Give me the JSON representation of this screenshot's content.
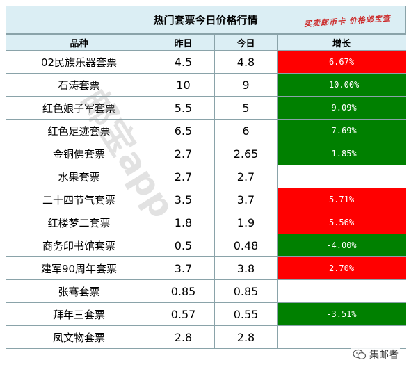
{
  "title": "热门套票今日价格行情",
  "slogan": "买卖邮币卡  价格邮宝查",
  "watermark": "邮宝app",
  "brand": "集邮者",
  "colors": {
    "up": "#ff0000",
    "down": "#008000",
    "header_bg": "#dbeef4"
  },
  "headers": [
    "品种",
    "昨日",
    "今日",
    "增长"
  ],
  "rows": [
    {
      "name": "02民族乐器套票",
      "yesterday": "4.5",
      "today": "4.8",
      "change": "6.67%",
      "trend": "up"
    },
    {
      "name": "石涛套票",
      "yesterday": "10",
      "today": "9",
      "change": "-10.00%",
      "trend": "down"
    },
    {
      "name": "红色娘子军套票",
      "yesterday": "5.5",
      "today": "5",
      "change": "-9.09%",
      "trend": "down"
    },
    {
      "name": "红色足迹套票",
      "yesterday": "6.5",
      "today": "6",
      "change": "-7.69%",
      "trend": "down"
    },
    {
      "name": "金铜佛套票",
      "yesterday": "2.7",
      "today": "2.65",
      "change": "-1.85%",
      "trend": "down"
    },
    {
      "name": "水果套票",
      "yesterday": "2.7",
      "today": "2.7",
      "change": "",
      "trend": "flat"
    },
    {
      "name": "二十四节气套票",
      "yesterday": "3.5",
      "today": "3.7",
      "change": "5.71%",
      "trend": "up"
    },
    {
      "name": "红楼梦二套票",
      "yesterday": "1.8",
      "today": "1.9",
      "change": "5.56%",
      "trend": "up"
    },
    {
      "name": "商务印书馆套票",
      "yesterday": "0.5",
      "today": "0.48",
      "change": "-4.00%",
      "trend": "down"
    },
    {
      "name": "建军90周年套票",
      "yesterday": "3.7",
      "today": "3.8",
      "change": "2.70%",
      "trend": "up"
    },
    {
      "name": "张骞套票",
      "yesterday": "0.85",
      "today": "0.85",
      "change": "",
      "trend": "flat"
    },
    {
      "name": "拜年三套票",
      "yesterday": "0.57",
      "today": "0.55",
      "change": "-3.51%",
      "trend": "down"
    },
    {
      "name": "凤文物套票",
      "yesterday": "2.8",
      "today": "2.8",
      "change": "",
      "trend": "flat"
    }
  ]
}
